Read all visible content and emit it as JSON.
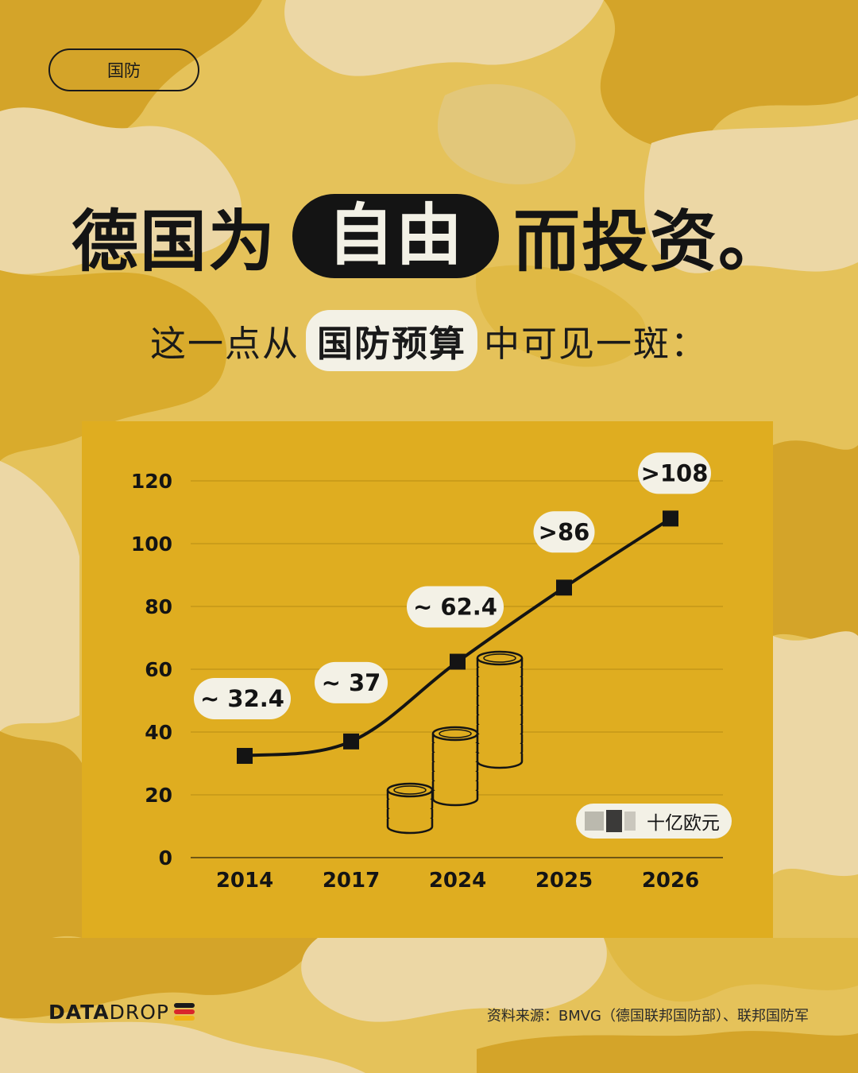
{
  "tag": "国防",
  "headline": {
    "before": "德国为",
    "highlight": "自由",
    "after": "而投资。"
  },
  "subline": {
    "before": "这一点从",
    "highlight": "国防预算",
    "after": "中可见一斑："
  },
  "unit_label": "十亿欧元",
  "brand": {
    "bold": "DATA",
    "light": "DROP"
  },
  "source": "资料来源：BMVG（德国联邦国防部）、联邦国防军",
  "colors": {
    "panel": "#dfad20",
    "ink": "#141414",
    "label_bg": "#f3f1e6",
    "flag": [
      "#1a1a1a",
      "#d9262b",
      "#f0b417"
    ]
  },
  "chart_data": {
    "type": "line",
    "categories": [
      "2014",
      "2017",
      "2024",
      "2025",
      "2026"
    ],
    "values": [
      32.4,
      37,
      62.4,
      86,
      108
    ],
    "data_labels": [
      "~ 32.4",
      "~ 37",
      "~ 62.4",
      ">86",
      ">108"
    ],
    "yticks": [
      "0",
      "20",
      "40",
      "60",
      "80",
      "100",
      "120"
    ],
    "ylim": [
      0,
      120
    ],
    "grid": true,
    "legend": "none"
  }
}
